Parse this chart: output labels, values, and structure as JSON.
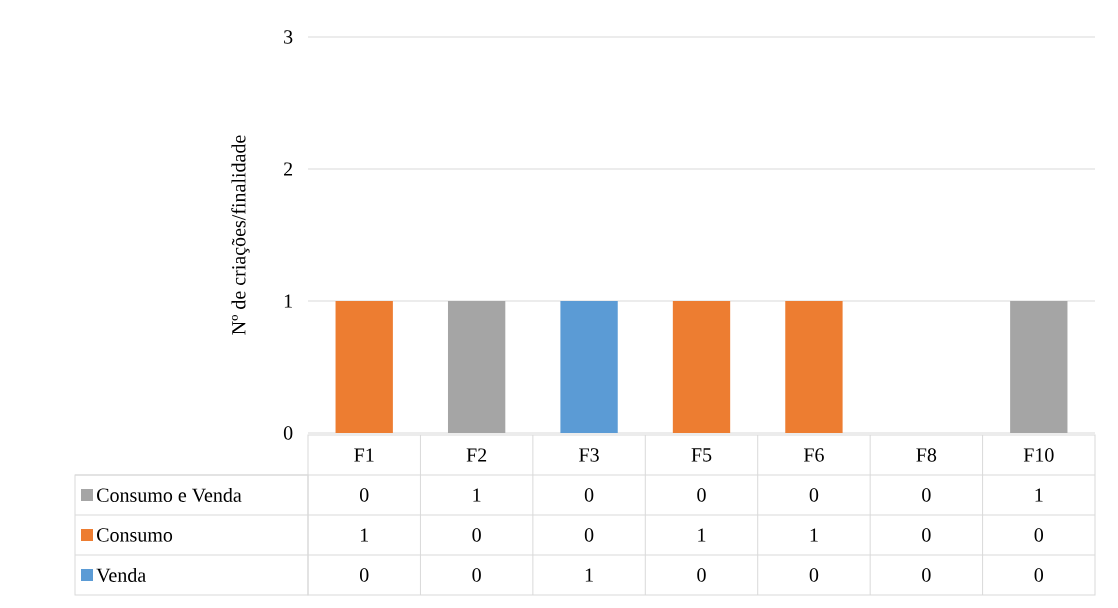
{
  "chart_data": {
    "type": "bar",
    "stacked": true,
    "ylabel": "Nº de criações/finalidade",
    "categories": [
      "F1",
      "F2",
      "F3",
      "F5",
      "F6",
      "F8",
      "F10"
    ],
    "series": [
      {
        "name": "Venda",
        "color": "#5b9bd5",
        "values": [
          0,
          0,
          1,
          0,
          0,
          0,
          0
        ]
      },
      {
        "name": "Consumo",
        "color": "#ed7d31",
        "values": [
          1,
          0,
          0,
          1,
          1,
          0,
          0
        ]
      },
      {
        "name": "Consumo e Venda",
        "color": "#a5a5a5",
        "values": [
          0,
          1,
          0,
          0,
          0,
          0,
          1
        ]
      }
    ],
    "ylim": [
      0,
      3
    ],
    "yticks": [
      0,
      1,
      2,
      3
    ],
    "grid": "y",
    "legend": "bottom",
    "data_labels": true
  }
}
